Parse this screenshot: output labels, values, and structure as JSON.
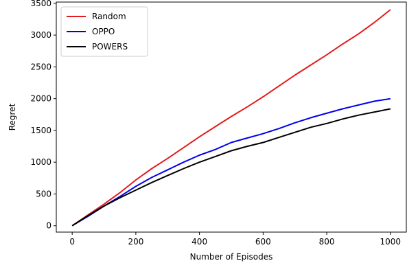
{
  "chart_data": {
    "type": "line",
    "title": "",
    "xlabel": "Number of Episodes",
    "ylabel": "Regret",
    "xlim": [
      -50,
      1050
    ],
    "ylim": [
      -100,
      3520
    ],
    "xticks": [
      0,
      200,
      400,
      600,
      800,
      1000
    ],
    "yticks": [
      0,
      500,
      1000,
      1500,
      2000,
      2500,
      3000,
      3500
    ],
    "grid": false,
    "legend_position": "top-left",
    "series": [
      {
        "name": "Random",
        "color": "#e41a1c",
        "x": [
          0,
          50,
          100,
          150,
          200,
          250,
          300,
          350,
          400,
          450,
          500,
          550,
          600,
          650,
          700,
          750,
          800,
          850,
          900,
          950,
          1000
        ],
        "y": [
          0,
          170,
          340,
          520,
          720,
          900,
          1060,
          1230,
          1400,
          1560,
          1720,
          1870,
          2030,
          2200,
          2370,
          2530,
          2690,
          2860,
          3020,
          3200,
          3400
        ]
      },
      {
        "name": "OPPO",
        "color": "#0000ee",
        "x": [
          0,
          50,
          100,
          150,
          200,
          250,
          300,
          350,
          400,
          450,
          500,
          550,
          600,
          650,
          700,
          750,
          800,
          850,
          900,
          950,
          1000
        ],
        "y": [
          0,
          150,
          310,
          460,
          620,
          760,
          880,
          1000,
          1110,
          1200,
          1310,
          1380,
          1450,
          1530,
          1620,
          1700,
          1770,
          1840,
          1900,
          1960,
          2000
        ]
      },
      {
        "name": "POWERS",
        "color": "#000000",
        "x": [
          0,
          50,
          100,
          150,
          200,
          250,
          300,
          350,
          400,
          450,
          500,
          550,
          600,
          650,
          700,
          750,
          800,
          850,
          900,
          950,
          1000
        ],
        "y": [
          0,
          160,
          310,
          440,
          560,
          680,
          790,
          900,
          1000,
          1090,
          1180,
          1250,
          1310,
          1390,
          1470,
          1550,
          1610,
          1680,
          1740,
          1790,
          1840
        ]
      }
    ]
  }
}
